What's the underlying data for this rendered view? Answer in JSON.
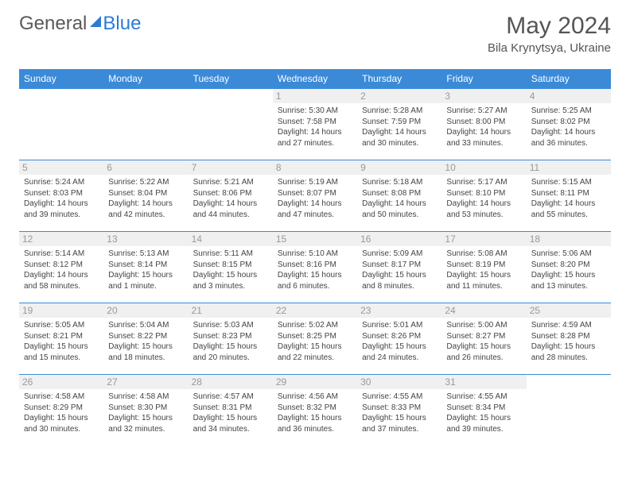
{
  "logo": {
    "text1": "General",
    "text2": "Blue"
  },
  "title": "May 2024",
  "location": "Bila Krynytsya, Ukraine",
  "weekdays": [
    "Sunday",
    "Monday",
    "Tuesday",
    "Wednesday",
    "Thursday",
    "Friday",
    "Saturday"
  ],
  "colors": {
    "header_bg": "#3b8ad8",
    "header_text": "#ffffff",
    "accent": "#2b7cd3",
    "daynum_bg": "#f0f0f0",
    "daynum_text": "#999999",
    "body_text": "#444444"
  },
  "weeks": [
    [
      {
        "day": "",
        "sunrise": "",
        "sunset": "",
        "daylight": ""
      },
      {
        "day": "",
        "sunrise": "",
        "sunset": "",
        "daylight": ""
      },
      {
        "day": "",
        "sunrise": "",
        "sunset": "",
        "daylight": ""
      },
      {
        "day": "1",
        "sunrise": "Sunrise: 5:30 AM",
        "sunset": "Sunset: 7:58 PM",
        "daylight": "Daylight: 14 hours and 27 minutes."
      },
      {
        "day": "2",
        "sunrise": "Sunrise: 5:28 AM",
        "sunset": "Sunset: 7:59 PM",
        "daylight": "Daylight: 14 hours and 30 minutes."
      },
      {
        "day": "3",
        "sunrise": "Sunrise: 5:27 AM",
        "sunset": "Sunset: 8:00 PM",
        "daylight": "Daylight: 14 hours and 33 minutes."
      },
      {
        "day": "4",
        "sunrise": "Sunrise: 5:25 AM",
        "sunset": "Sunset: 8:02 PM",
        "daylight": "Daylight: 14 hours and 36 minutes."
      }
    ],
    [
      {
        "day": "5",
        "sunrise": "Sunrise: 5:24 AM",
        "sunset": "Sunset: 8:03 PM",
        "daylight": "Daylight: 14 hours and 39 minutes."
      },
      {
        "day": "6",
        "sunrise": "Sunrise: 5:22 AM",
        "sunset": "Sunset: 8:04 PM",
        "daylight": "Daylight: 14 hours and 42 minutes."
      },
      {
        "day": "7",
        "sunrise": "Sunrise: 5:21 AM",
        "sunset": "Sunset: 8:06 PM",
        "daylight": "Daylight: 14 hours and 44 minutes."
      },
      {
        "day": "8",
        "sunrise": "Sunrise: 5:19 AM",
        "sunset": "Sunset: 8:07 PM",
        "daylight": "Daylight: 14 hours and 47 minutes."
      },
      {
        "day": "9",
        "sunrise": "Sunrise: 5:18 AM",
        "sunset": "Sunset: 8:08 PM",
        "daylight": "Daylight: 14 hours and 50 minutes."
      },
      {
        "day": "10",
        "sunrise": "Sunrise: 5:17 AM",
        "sunset": "Sunset: 8:10 PM",
        "daylight": "Daylight: 14 hours and 53 minutes."
      },
      {
        "day": "11",
        "sunrise": "Sunrise: 5:15 AM",
        "sunset": "Sunset: 8:11 PM",
        "daylight": "Daylight: 14 hours and 55 minutes."
      }
    ],
    [
      {
        "day": "12",
        "sunrise": "Sunrise: 5:14 AM",
        "sunset": "Sunset: 8:12 PM",
        "daylight": "Daylight: 14 hours and 58 minutes."
      },
      {
        "day": "13",
        "sunrise": "Sunrise: 5:13 AM",
        "sunset": "Sunset: 8:14 PM",
        "daylight": "Daylight: 15 hours and 1 minute."
      },
      {
        "day": "14",
        "sunrise": "Sunrise: 5:11 AM",
        "sunset": "Sunset: 8:15 PM",
        "daylight": "Daylight: 15 hours and 3 minutes."
      },
      {
        "day": "15",
        "sunrise": "Sunrise: 5:10 AM",
        "sunset": "Sunset: 8:16 PM",
        "daylight": "Daylight: 15 hours and 6 minutes."
      },
      {
        "day": "16",
        "sunrise": "Sunrise: 5:09 AM",
        "sunset": "Sunset: 8:17 PM",
        "daylight": "Daylight: 15 hours and 8 minutes."
      },
      {
        "day": "17",
        "sunrise": "Sunrise: 5:08 AM",
        "sunset": "Sunset: 8:19 PM",
        "daylight": "Daylight: 15 hours and 11 minutes."
      },
      {
        "day": "18",
        "sunrise": "Sunrise: 5:06 AM",
        "sunset": "Sunset: 8:20 PM",
        "daylight": "Daylight: 15 hours and 13 minutes."
      }
    ],
    [
      {
        "day": "19",
        "sunrise": "Sunrise: 5:05 AM",
        "sunset": "Sunset: 8:21 PM",
        "daylight": "Daylight: 15 hours and 15 minutes."
      },
      {
        "day": "20",
        "sunrise": "Sunrise: 5:04 AM",
        "sunset": "Sunset: 8:22 PM",
        "daylight": "Daylight: 15 hours and 18 minutes."
      },
      {
        "day": "21",
        "sunrise": "Sunrise: 5:03 AM",
        "sunset": "Sunset: 8:23 PM",
        "daylight": "Daylight: 15 hours and 20 minutes."
      },
      {
        "day": "22",
        "sunrise": "Sunrise: 5:02 AM",
        "sunset": "Sunset: 8:25 PM",
        "daylight": "Daylight: 15 hours and 22 minutes."
      },
      {
        "day": "23",
        "sunrise": "Sunrise: 5:01 AM",
        "sunset": "Sunset: 8:26 PM",
        "daylight": "Daylight: 15 hours and 24 minutes."
      },
      {
        "day": "24",
        "sunrise": "Sunrise: 5:00 AM",
        "sunset": "Sunset: 8:27 PM",
        "daylight": "Daylight: 15 hours and 26 minutes."
      },
      {
        "day": "25",
        "sunrise": "Sunrise: 4:59 AM",
        "sunset": "Sunset: 8:28 PM",
        "daylight": "Daylight: 15 hours and 28 minutes."
      }
    ],
    [
      {
        "day": "26",
        "sunrise": "Sunrise: 4:58 AM",
        "sunset": "Sunset: 8:29 PM",
        "daylight": "Daylight: 15 hours and 30 minutes."
      },
      {
        "day": "27",
        "sunrise": "Sunrise: 4:58 AM",
        "sunset": "Sunset: 8:30 PM",
        "daylight": "Daylight: 15 hours and 32 minutes."
      },
      {
        "day": "28",
        "sunrise": "Sunrise: 4:57 AM",
        "sunset": "Sunset: 8:31 PM",
        "daylight": "Daylight: 15 hours and 34 minutes."
      },
      {
        "day": "29",
        "sunrise": "Sunrise: 4:56 AM",
        "sunset": "Sunset: 8:32 PM",
        "daylight": "Daylight: 15 hours and 36 minutes."
      },
      {
        "day": "30",
        "sunrise": "Sunrise: 4:55 AM",
        "sunset": "Sunset: 8:33 PM",
        "daylight": "Daylight: 15 hours and 37 minutes."
      },
      {
        "day": "31",
        "sunrise": "Sunrise: 4:55 AM",
        "sunset": "Sunset: 8:34 PM",
        "daylight": "Daylight: 15 hours and 39 minutes."
      },
      {
        "day": "",
        "sunrise": "",
        "sunset": "",
        "daylight": ""
      }
    ]
  ]
}
